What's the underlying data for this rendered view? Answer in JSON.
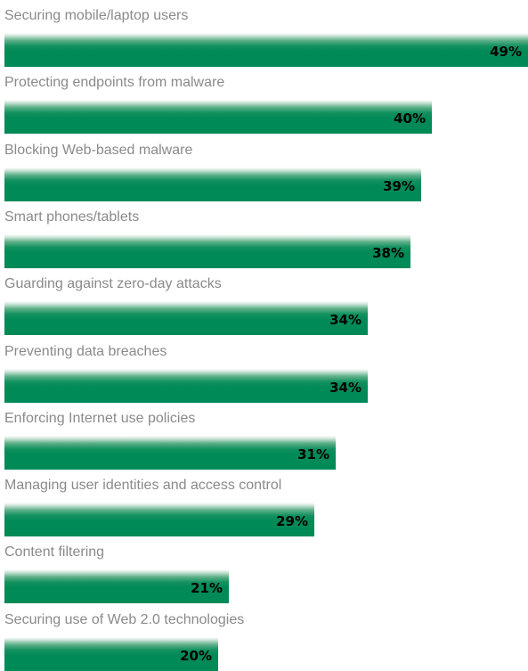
{
  "chart_data": {
    "type": "bar",
    "orientation": "horizontal",
    "categories": [
      "Securing mobile/laptop users",
      "Protecting endpoints from malware",
      "Blocking Web-based malware",
      "Smart phones/tablets",
      "Guarding against zero-day attacks",
      "Preventing data breaches",
      "Enforcing Internet use policies",
      "Managing user identities and access control",
      "Content filtering",
      "Securing use of Web 2.0 technologies"
    ],
    "values": [
      49,
      40,
      39,
      38,
      34,
      34,
      31,
      29,
      21,
      20
    ],
    "value_labels": [
      "49%",
      "40%",
      "39%",
      "38%",
      "34%",
      "34%",
      "31%",
      "29%",
      "21%",
      "20%"
    ],
    "bar_color": "#008a57",
    "grid": false,
    "legend": "none"
  }
}
